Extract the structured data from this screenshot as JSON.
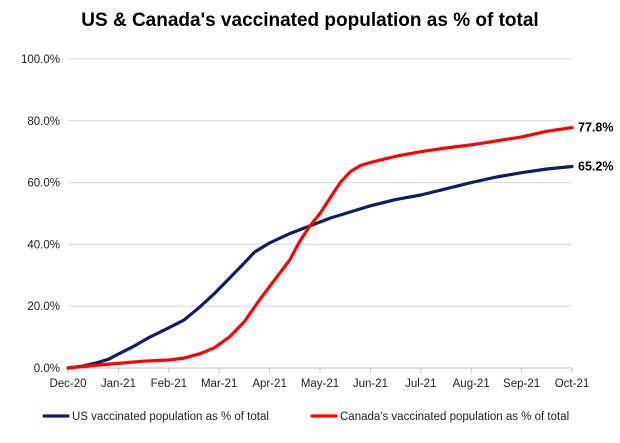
{
  "chart_data": {
    "type": "line",
    "title": "US & Canada's vaccinated population as % of total",
    "xlabel": "",
    "ylabel": "",
    "ylim": [
      0,
      100
    ],
    "yticks": [
      "0.0%",
      "20.0%",
      "40.0%",
      "60.0%",
      "80.0%",
      "100.0%"
    ],
    "ytick_values": [
      0,
      20,
      40,
      60,
      80,
      100
    ],
    "categories": [
      "Dec-20",
      "Jan-21",
      "Feb-21",
      "Mar-21",
      "Apr-21",
      "May-21",
      "Jun-21",
      "Jul-21",
      "Aug-21",
      "Sep-21",
      "Oct-21"
    ],
    "legend_position": "bottom",
    "series": [
      {
        "name": "US vaccinated population as % of total",
        "color": "#0d1f5c",
        "end_label": "65.2%",
        "points": [
          [
            0,
            0
          ],
          [
            0.3,
            0.6
          ],
          [
            0.6,
            1.8
          ],
          [
            0.8,
            2.8
          ],
          [
            1.0,
            4.5
          ],
          [
            1.3,
            7
          ],
          [
            1.6,
            9.8
          ],
          [
            2.0,
            13
          ],
          [
            2.3,
            15.5
          ],
          [
            2.6,
            19.5
          ],
          [
            2.9,
            24
          ],
          [
            3.2,
            29
          ],
          [
            3.5,
            34
          ],
          [
            3.7,
            37.5
          ],
          [
            4.0,
            40.5
          ],
          [
            4.4,
            43.5
          ],
          [
            4.8,
            46
          ],
          [
            5.2,
            48.5
          ],
          [
            5.6,
            50.5
          ],
          [
            6.0,
            52.5
          ],
          [
            6.5,
            54.5
          ],
          [
            7.0,
            56
          ],
          [
            7.5,
            58
          ],
          [
            8.0,
            60
          ],
          [
            8.5,
            61.8
          ],
          [
            9.0,
            63.2
          ],
          [
            9.5,
            64.4
          ],
          [
            10.0,
            65.2
          ]
        ]
      },
      {
        "name": "Canada's vaccinated population as % of total",
        "color": "#ff0000",
        "end_label": "77.8%",
        "points": [
          [
            0,
            0
          ],
          [
            0.5,
            0.8
          ],
          [
            1.0,
            1.5
          ],
          [
            1.5,
            2.2
          ],
          [
            2.0,
            2.6
          ],
          [
            2.3,
            3.2
          ],
          [
            2.6,
            4.5
          ],
          [
            2.9,
            6.5
          ],
          [
            3.2,
            10
          ],
          [
            3.5,
            15
          ],
          [
            3.8,
            22
          ],
          [
            4.1,
            28.5
          ],
          [
            4.4,
            35
          ],
          [
            4.6,
            41
          ],
          [
            4.8,
            46
          ],
          [
            5.0,
            50
          ],
          [
            5.2,
            55
          ],
          [
            5.4,
            60
          ],
          [
            5.6,
            63.5
          ],
          [
            5.8,
            65.5
          ],
          [
            6.0,
            66.5
          ],
          [
            6.5,
            68.5
          ],
          [
            7.0,
            70
          ],
          [
            7.5,
            71.2
          ],
          [
            8.0,
            72.2
          ],
          [
            8.5,
            73.5
          ],
          [
            9.0,
            74.8
          ],
          [
            9.5,
            76.6
          ],
          [
            10.0,
            77.8
          ]
        ]
      }
    ]
  }
}
